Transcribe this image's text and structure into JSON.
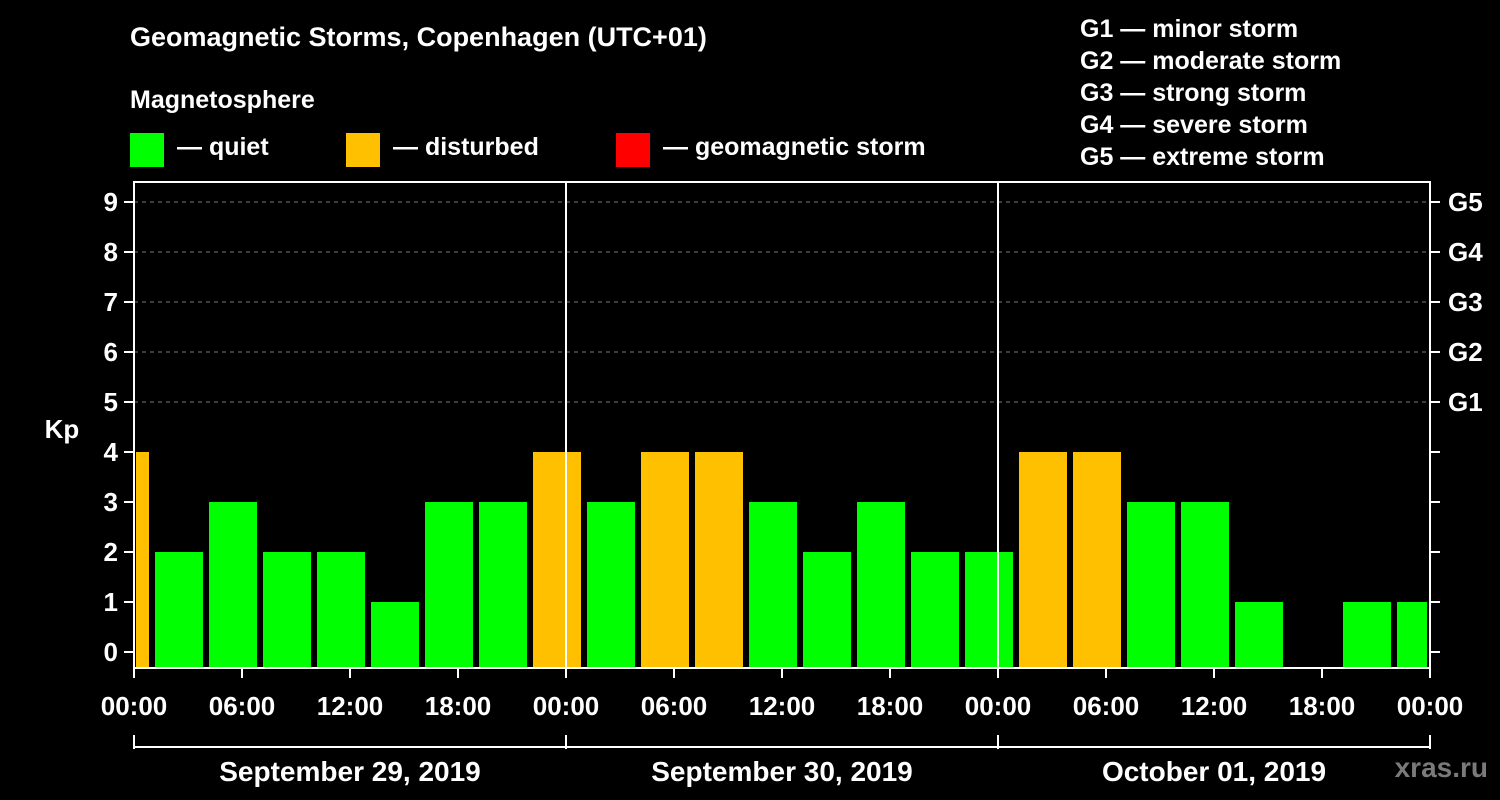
{
  "title": "Geomagnetic Storms, Copenhagen (UTC+01)",
  "magnetosphere": {
    "title": "Magnetosphere",
    "items": [
      {
        "label": "— quiet",
        "color": "#00ff00"
      },
      {
        "label": "— disturbed",
        "color": "#ffc000"
      },
      {
        "label": "— geomagnetic storm",
        "color": "#ff0000"
      }
    ]
  },
  "storm_scale": [
    "G1 — minor storm",
    "G2 — moderate storm",
    "G3 — strong storm",
    "G4 — severe storm",
    "G5 — extreme storm"
  ],
  "watermark": "xras.ru",
  "chart_data": {
    "type": "bar",
    "ylabel": "Kp",
    "ylim": [
      0,
      9
    ],
    "y_ticks": [
      "0",
      "1",
      "2",
      "3",
      "4",
      "5",
      "6",
      "7",
      "8",
      "9"
    ],
    "right_ticks": [
      {
        "value": 5,
        "label": "G1"
      },
      {
        "value": 6,
        "label": "G2"
      },
      {
        "value": 7,
        "label": "G3"
      },
      {
        "value": 8,
        "label": "G4"
      },
      {
        "value": 9,
        "label": "G5"
      }
    ],
    "x_tick_labels": [
      "00:00",
      "06:00",
      "12:00",
      "18:00",
      "00:00",
      "06:00",
      "12:00",
      "18:00",
      "00:00",
      "06:00",
      "12:00",
      "18:00",
      "00:00"
    ],
    "days": [
      "September 29, 2019",
      "September 30, 2019",
      "October 01, 2019"
    ],
    "grid": "dashed horizontal at 5–9",
    "bars": [
      {
        "start_hour": 0,
        "end_hour": 1,
        "value": 4,
        "status": "disturbed"
      },
      {
        "start_hour": 1,
        "end_hour": 4,
        "value": 2,
        "status": "quiet"
      },
      {
        "start_hour": 4,
        "end_hour": 7,
        "value": 3,
        "status": "quiet"
      },
      {
        "start_hour": 7,
        "end_hour": 10,
        "value": 2,
        "status": "quiet"
      },
      {
        "start_hour": 10,
        "end_hour": 13,
        "value": 2,
        "status": "quiet"
      },
      {
        "start_hour": 13,
        "end_hour": 16,
        "value": 1,
        "status": "quiet"
      },
      {
        "start_hour": 16,
        "end_hour": 19,
        "value": 3,
        "status": "quiet"
      },
      {
        "start_hour": 19,
        "end_hour": 22,
        "value": 3,
        "status": "quiet"
      },
      {
        "start_hour": 22,
        "end_hour": 25,
        "value": 4,
        "status": "disturbed"
      },
      {
        "start_hour": 25,
        "end_hour": 28,
        "value": 3,
        "status": "quiet"
      },
      {
        "start_hour": 28,
        "end_hour": 31,
        "value": 4,
        "status": "disturbed"
      },
      {
        "start_hour": 31,
        "end_hour": 34,
        "value": 4,
        "status": "disturbed"
      },
      {
        "start_hour": 34,
        "end_hour": 37,
        "value": 3,
        "status": "quiet"
      },
      {
        "start_hour": 37,
        "end_hour": 40,
        "value": 2,
        "status": "quiet"
      },
      {
        "start_hour": 40,
        "end_hour": 43,
        "value": 3,
        "status": "quiet"
      },
      {
        "start_hour": 43,
        "end_hour": 46,
        "value": 2,
        "status": "quiet"
      },
      {
        "start_hour": 46,
        "end_hour": 49,
        "value": 2,
        "status": "quiet"
      },
      {
        "start_hour": 49,
        "end_hour": 52,
        "value": 4,
        "status": "disturbed"
      },
      {
        "start_hour": 52,
        "end_hour": 55,
        "value": 4,
        "status": "disturbed"
      },
      {
        "start_hour": 55,
        "end_hour": 58,
        "value": 3,
        "status": "quiet"
      },
      {
        "start_hour": 58,
        "end_hour": 61,
        "value": 3,
        "status": "quiet"
      },
      {
        "start_hour": 61,
        "end_hour": 64,
        "value": 1,
        "status": "quiet"
      },
      {
        "start_hour": 64,
        "end_hour": 67,
        "value": 0,
        "status": "quiet"
      },
      {
        "start_hour": 67,
        "end_hour": 70,
        "value": 1,
        "status": "quiet"
      },
      {
        "start_hour": 70,
        "end_hour": 72,
        "value": 1,
        "status": "quiet"
      }
    ]
  }
}
